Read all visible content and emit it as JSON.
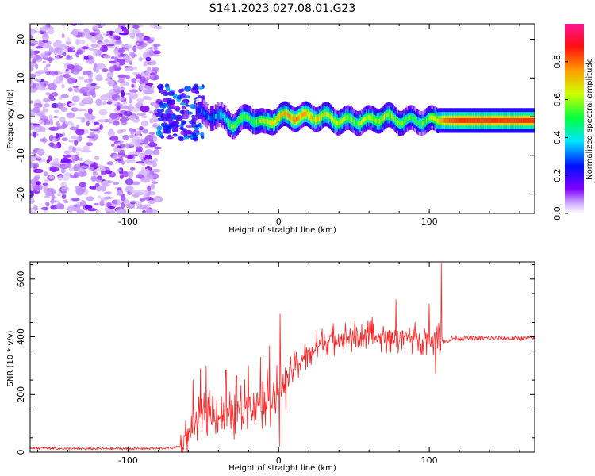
{
  "chart_data": [
    {
      "type": "heatmap",
      "title": "S141.2023.027.08.01.G23",
      "xlabel": "Height of straight line (km)",
      "ylabel": "Frequency (Hz)",
      "xlim": [
        -165,
        170
      ],
      "ylim": [
        -25,
        24
      ],
      "xticks": [
        -100,
        0,
        100
      ],
      "yticks": [
        -20,
        -10,
        0,
        10,
        20
      ],
      "colorbar": {
        "label": "Normalized spectral amplitude",
        "range": [
          0,
          1
        ],
        "ticks": [
          "0.0",
          "0.2",
          "0.4",
          "0.6",
          "0.8"
        ],
        "colormap": [
          "#ffffff",
          "#7f00ff",
          "#0000ff",
          "#00ffff",
          "#00ff00",
          "#ffff00",
          "#ff8000",
          "#ff0000",
          "#ff1493"
        ]
      },
      "ridge": {
        "x": [
          -55,
          -40,
          -30,
          -20,
          -10,
          0,
          10,
          20,
          30,
          40,
          50,
          60,
          70,
          80,
          90,
          100,
          110,
          120,
          130,
          140,
          150,
          160,
          170
        ],
        "frequency": [
          1,
          0,
          -2,
          0,
          -2,
          0,
          0,
          0,
          0,
          -1,
          -1,
          -1,
          0,
          -1,
          -1,
          -1,
          -1,
          -1,
          -1,
          -1,
          -1,
          -1,
          -1
        ],
        "amplitude": [
          0.25,
          0.35,
          0.55,
          0.5,
          0.6,
          0.7,
          0.75,
          0.7,
          0.65,
          0.6,
          0.55,
          0.6,
          0.6,
          0.55,
          0.5,
          0.55,
          0.8,
          0.85,
          0.85,
          0.85,
          0.85,
          0.85,
          0.85
        ]
      },
      "noise_region_x": [
        -165,
        -80
      ]
    },
    {
      "type": "line",
      "title": "",
      "xlabel": "Height of straight line (km)",
      "ylabel": "SNR (10 * v/v)",
      "xlim": [
        -165,
        170
      ],
      "ylim": [
        0,
        660
      ],
      "xticks": [
        -100,
        0,
        100
      ],
      "yticks": [
        0,
        200,
        400,
        600
      ],
      "color": "#ff2222",
      "series": [
        {
          "x": [
            -165,
            -140,
            -120,
            -100,
            -80,
            -70,
            -65,
            -60,
            -55,
            -50,
            -45,
            -40,
            -35,
            -30,
            -25,
            -20,
            -15,
            -10,
            -5,
            0,
            5,
            10,
            15,
            20,
            25,
            30,
            35,
            40,
            45,
            50,
            55,
            60,
            65,
            70,
            75,
            80,
            85,
            90,
            95,
            100,
            105,
            108,
            110,
            115,
            120,
            130,
            140,
            150,
            160,
            170
          ],
          "values": [
            15,
            12,
            12,
            12,
            13,
            15,
            22,
            60,
            110,
            130,
            140,
            130,
            120,
            130,
            150,
            170,
            175,
            180,
            190,
            210,
            260,
            290,
            320,
            340,
            365,
            380,
            390,
            395,
            400,
            400,
            405,
            400,
            395,
            400,
            400,
            400,
            400,
            395,
            395,
            395,
            390,
            400,
            380,
            395,
            395,
            395,
            395,
            395,
            395,
            395
          ]
        }
      ],
      "spikes": [
        {
          "x": -57,
          "value": 250
        },
        {
          "x": -52,
          "value": 290
        },
        {
          "x": -48,
          "value": 300
        },
        {
          "x": -35,
          "value": 285
        },
        {
          "x": -28,
          "value": 265
        },
        {
          "x": -20,
          "value": 300
        },
        {
          "x": -12,
          "value": 330
        },
        {
          "x": -6,
          "value": 370
        },
        {
          "x": 1,
          "value": 480
        },
        {
          "x": 0.5,
          "value": 20
        },
        {
          "x": 62,
          "value": 470
        },
        {
          "x": 78,
          "value": 530
        },
        {
          "x": 100,
          "value": 515
        },
        {
          "x": 108,
          "value": 655
        },
        {
          "x": 104,
          "value": 270
        }
      ]
    }
  ]
}
